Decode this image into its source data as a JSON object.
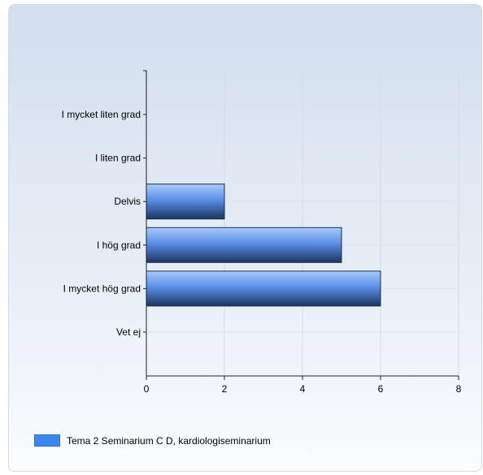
{
  "chart_data": {
    "type": "bar",
    "orientation": "horizontal",
    "categories": [
      "I mycket liten grad",
      "I liten grad",
      "Delvis",
      "I hög grad",
      "I mycket hög grad",
      "Vet ej"
    ],
    "series": [
      {
        "name": "Tema 2 Seminarium C D, kardiologiseminarium",
        "values": [
          0,
          0,
          2,
          5,
          6,
          0
        ]
      }
    ],
    "xlim": [
      0,
      8
    ],
    "xticks": [
      0,
      2,
      4,
      6,
      8
    ],
    "grid": true,
    "legend_position": "bottom-left",
    "colors": {
      "bar_light": "#8fb8f5",
      "bar_mid": "#4f86e6",
      "bar_dark": "#1c3a6e",
      "swatch": "#3d86ee"
    }
  }
}
